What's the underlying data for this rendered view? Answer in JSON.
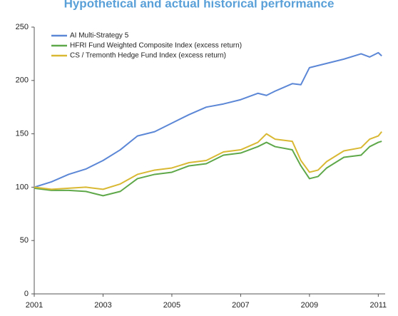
{
  "chart_data": {
    "type": "line",
    "title": "Hypothetical and actual historical performance",
    "xlim": [
      2001,
      2011.2
    ],
    "xticks": [
      2001,
      2003,
      2005,
      2007,
      2009,
      2011
    ],
    "ylim": [
      0,
      250
    ],
    "yticks": [
      0,
      50,
      100,
      150,
      200,
      250
    ],
    "legend": "upper left",
    "x": [
      2001,
      2001.5,
      2002,
      2002.5,
      2003,
      2003.5,
      2004,
      2004.5,
      2005,
      2005.5,
      2006,
      2006.5,
      2007,
      2007.5,
      2007.75,
      2008,
      2008.5,
      2008.75,
      2009,
      2009.25,
      2009.5,
      2010,
      2010.5,
      2010.75,
      2011,
      2011.1
    ],
    "series": [
      {
        "name": "AI Multi-Strategy 5",
        "color": "#5b87d6",
        "values": [
          100,
          105,
          112,
          117,
          125,
          135,
          148,
          152,
          160,
          168,
          175,
          178,
          182,
          188,
          186,
          190,
          197,
          196,
          212,
          214,
          216,
          220,
          225,
          222,
          226,
          223
        ]
      },
      {
        "name": "HFRI Fund Weighted Composite Index (excess return)",
        "color": "#5fa84a",
        "values": [
          99,
          97,
          97,
          96,
          92,
          96,
          108,
          112,
          114,
          120,
          122,
          130,
          132,
          138,
          142,
          138,
          135,
          120,
          108,
          110,
          118,
          128,
          130,
          138,
          142,
          143
        ]
      },
      {
        "name": "CS / Tremonth Hedge Fund Index (excess return)",
        "color": "#d9b933",
        "values": [
          100,
          98,
          99,
          100,
          98,
          103,
          112,
          116,
          118,
          123,
          125,
          133,
          135,
          142,
          150,
          145,
          143,
          125,
          114,
          116,
          124,
          134,
          137,
          145,
          148,
          152
        ]
      }
    ]
  }
}
